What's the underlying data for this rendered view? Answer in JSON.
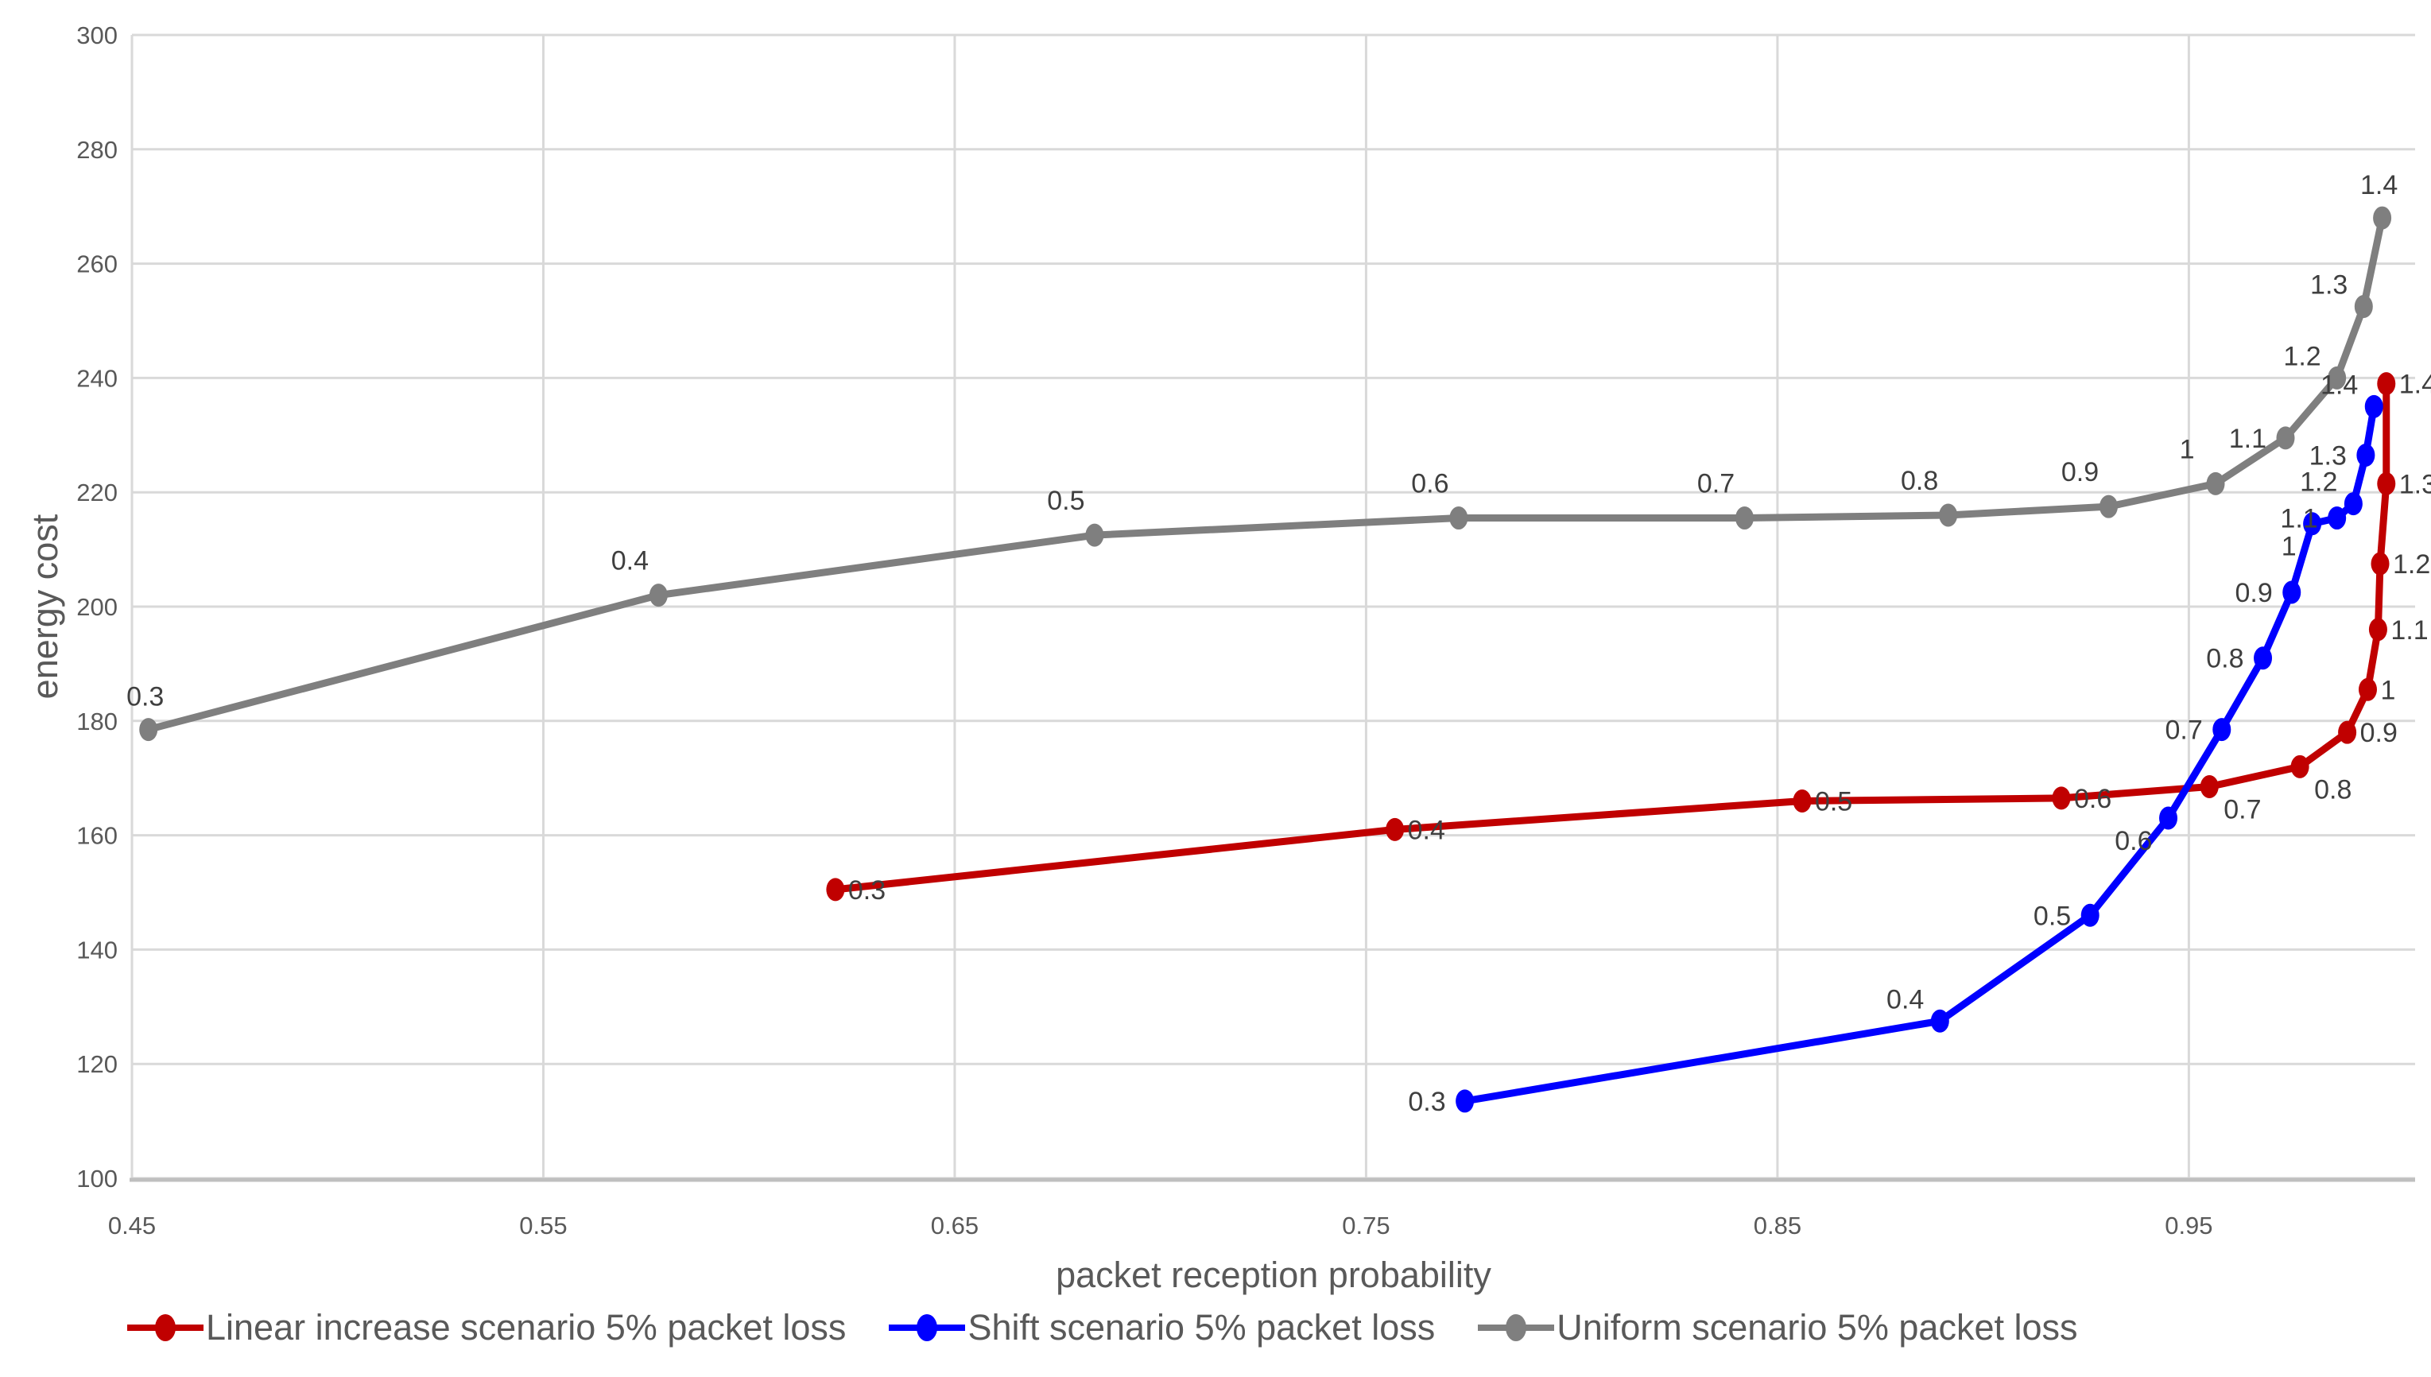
{
  "chart_data": {
    "type": "line",
    "title": "",
    "xlabel": "packet reception probability",
    "ylabel": "energy cost",
    "xlim": [
      0.45,
      1.005
    ],
    "ylim": [
      100,
      300
    ],
    "x_ticks": [
      0.45,
      0.55,
      0.65,
      0.75,
      0.85,
      0.95
    ],
    "x_tick_labels": [
      "0.45",
      "0.55",
      "0.65",
      "0.75",
      "0.85",
      "0.95"
    ],
    "y_ticks": [
      100,
      120,
      140,
      160,
      180,
      200,
      220,
      240,
      260,
      280,
      300
    ],
    "grid": true,
    "legend_position": "bottom",
    "colors": {
      "gridline": "#D9D9D9",
      "axis_line": "#BFBFBF",
      "tick_text": "#595959",
      "point_label_text": "#3F3F3F"
    },
    "series": [
      {
        "name": "Linear increase scenario 5% packet loss",
        "color": "#C00000",
        "points": [
          {
            "label": "0.3",
            "x": 0.621,
            "y": 150.5,
            "pos": "right"
          },
          {
            "label": "0.4",
            "x": 0.757,
            "y": 161,
            "pos": "right"
          },
          {
            "label": "0.5",
            "x": 0.856,
            "y": 166,
            "pos": "right"
          },
          {
            "label": "0.6",
            "x": 0.919,
            "y": 166.5,
            "pos": "right"
          },
          {
            "label": "0.7",
            "x": 0.955,
            "y": 168.5,
            "pos": "right-below"
          },
          {
            "label": "0.8",
            "x": 0.977,
            "y": 172,
            "pos": "right-below"
          },
          {
            "label": "0.9",
            "x": 0.9885,
            "y": 178,
            "pos": "right"
          },
          {
            "label": "1",
            "x": 0.9935,
            "y": 185.5,
            "pos": "right"
          },
          {
            "label": "1.1",
            "x": 0.996,
            "y": 196,
            "pos": "right"
          },
          {
            "label": "1.2",
            "x": 0.9965,
            "y": 207.5,
            "pos": "right"
          },
          {
            "label": "1.3",
            "x": 0.998,
            "y": 221.5,
            "pos": "right"
          },
          {
            "label": "1.4",
            "x": 0.998,
            "y": 239,
            "pos": "right"
          }
        ]
      },
      {
        "name": "Shift scenario 5% packet loss",
        "color": "#0000FF",
        "points": [
          {
            "label": "0.3",
            "x": 0.774,
            "y": 113.5,
            "pos": "left"
          },
          {
            "label": "0.4",
            "x": 0.8895,
            "y": 127.5,
            "pos": "left-above"
          },
          {
            "label": "0.5",
            "x": 0.926,
            "y": 146,
            "pos": "left"
          },
          {
            "label": "0.6",
            "x": 0.945,
            "y": 163,
            "pos": "left-below"
          },
          {
            "label": "0.7",
            "x": 0.958,
            "y": 178.5,
            "pos": "left"
          },
          {
            "label": "0.8",
            "x": 0.968,
            "y": 191,
            "pos": "left"
          },
          {
            "label": "0.9",
            "x": 0.975,
            "y": 202.5,
            "pos": "left"
          },
          {
            "label": "1",
            "x": 0.98,
            "y": 214.5,
            "pos": "left-below"
          },
          {
            "label": "1.1",
            "x": 0.986,
            "y": 215.5,
            "pos": "left"
          },
          {
            "label": "1.2",
            "x": 0.99,
            "y": 218,
            "pos": "left-above"
          },
          {
            "label": "1.3",
            "x": 0.993,
            "y": 226.5,
            "pos": "left"
          },
          {
            "label": "1.4",
            "x": 0.995,
            "y": 235,
            "pos": "left-above"
          }
        ]
      },
      {
        "name": "Uniform scenario 5% packet loss",
        "color": "#7F7F7F",
        "points": [
          {
            "label": "0.3",
            "x": 0.454,
            "y": 178.5,
            "pos": "above"
          },
          {
            "label": "0.4",
            "x": 0.578,
            "y": 202,
            "pos": "above-left"
          },
          {
            "label": "0.5",
            "x": 0.684,
            "y": 212.5,
            "pos": "above-left"
          },
          {
            "label": "0.6",
            "x": 0.7725,
            "y": 215.5,
            "pos": "above-left"
          },
          {
            "label": "0.7",
            "x": 0.842,
            "y": 215.5,
            "pos": "above-left"
          },
          {
            "label": "0.8",
            "x": 0.8915,
            "y": 216,
            "pos": "above-left"
          },
          {
            "label": "0.9",
            "x": 0.9305,
            "y": 217.5,
            "pos": "above-left"
          },
          {
            "label": "1",
            "x": 0.9565,
            "y": 221.5,
            "pos": "above-left"
          },
          {
            "label": "1.1",
            "x": 0.9735,
            "y": 229.5,
            "pos": "left"
          },
          {
            "label": "1.2",
            "x": 0.986,
            "y": 240,
            "pos": "left-above"
          },
          {
            "label": "1.3",
            "x": 0.9925,
            "y": 252.5,
            "pos": "left-above"
          },
          {
            "label": "1.4",
            "x": 0.997,
            "y": 268,
            "pos": "above"
          }
        ]
      }
    ]
  }
}
